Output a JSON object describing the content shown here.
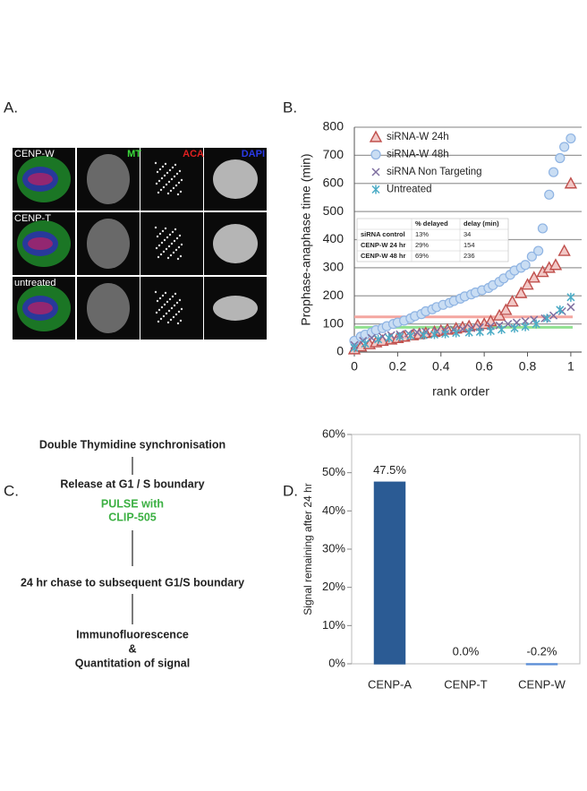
{
  "panel_labels": [
    "A.",
    "B.",
    "C.",
    "D."
  ],
  "microscopy": {
    "rows": [
      "CENP-W",
      "CENP-T",
      "untreated"
    ],
    "channels": [
      "MT",
      "ACA",
      "DAPI"
    ]
  },
  "workflow": {
    "steps": [
      "Double Thymidine synchronisation",
      "Release at G1 / S boundary",
      "24 hr chase to subsequent G1/S boundary",
      "Immunofluorescence",
      "&",
      "Quantitation of signal"
    ],
    "pulse": [
      "PULSE with",
      "CLIP-505"
    ]
  },
  "chart_data": [
    {
      "type": "scatter",
      "x_label": "rank order",
      "y_label": "Prophase-anaphase time (min)",
      "xlim": [
        0,
        1.05
      ],
      "xticks": [
        0,
        0.2,
        0.4,
        0.6,
        0.8,
        1
      ],
      "ylim": [
        0,
        800
      ],
      "yticks": [
        0,
        100,
        200,
        300,
        400,
        500,
        600,
        700,
        800
      ],
      "grid": true,
      "legend": "top-left",
      "series": [
        {
          "name": "siRNA-W 24h",
          "marker": "triangle",
          "color": "#c0504d",
          "x": [
            0,
            0.03,
            0.07,
            0.1,
            0.13,
            0.17,
            0.2,
            0.23,
            0.27,
            0.3,
            0.33,
            0.37,
            0.4,
            0.43,
            0.47,
            0.5,
            0.53,
            0.57,
            0.6,
            0.63,
            0.67,
            0.7,
            0.73,
            0.77,
            0.8,
            0.83,
            0.87,
            0.9,
            0.93,
            0.97,
            1
          ],
          "values": [
            10,
            20,
            28,
            35,
            40,
            45,
            50,
            55,
            60,
            64,
            68,
            72,
            76,
            80,
            84,
            88,
            92,
            96,
            100,
            110,
            130,
            150,
            180,
            210,
            240,
            265,
            285,
            300,
            310,
            360,
            600
          ]
        },
        {
          "name": "siRNA-W 48h",
          "marker": "circle",
          "color": "#8fb4e3",
          "x": [
            0,
            0.03,
            0.05,
            0.08,
            0.1,
            0.13,
            0.15,
            0.18,
            0.2,
            0.23,
            0.26,
            0.28,
            0.31,
            0.33,
            0.36,
            0.38,
            0.41,
            0.44,
            0.46,
            0.49,
            0.51,
            0.54,
            0.56,
            0.59,
            0.62,
            0.64,
            0.67,
            0.69,
            0.72,
            0.74,
            0.77,
            0.79,
            0.82,
            0.85,
            0.87,
            0.9,
            0.92,
            0.95,
            0.97,
            1
          ],
          "values": [
            40,
            55,
            62,
            70,
            78,
            85,
            92,
            100,
            105,
            112,
            120,
            128,
            135,
            145,
            152,
            160,
            168,
            175,
            182,
            190,
            198,
            205,
            212,
            220,
            228,
            238,
            250,
            262,
            275,
            290,
            300,
            310,
            340,
            360,
            440,
            560,
            640,
            690,
            730,
            760
          ]
        },
        {
          "name": "siRNA Non Targeting",
          "marker": "x",
          "color": "#7f6fa0",
          "x": [
            0,
            0.04,
            0.08,
            0.13,
            0.17,
            0.21,
            0.25,
            0.29,
            0.33,
            0.38,
            0.42,
            0.46,
            0.5,
            0.54,
            0.58,
            0.63,
            0.67,
            0.71,
            0.75,
            0.79,
            0.83,
            0.88,
            0.92,
            0.96,
            1
          ],
          "values": [
            25,
            40,
            50,
            55,
            60,
            63,
            66,
            70,
            72,
            75,
            78,
            80,
            82,
            85,
            88,
            92,
            95,
            100,
            105,
            110,
            115,
            120,
            130,
            145,
            160
          ]
        },
        {
          "name": "Untreated",
          "marker": "asterisk",
          "color": "#4bacc6",
          "x": [
            0,
            0.05,
            0.11,
            0.16,
            0.21,
            0.26,
            0.32,
            0.37,
            0.42,
            0.47,
            0.53,
            0.58,
            0.63,
            0.68,
            0.74,
            0.79,
            0.84,
            0.89,
            0.95,
            1
          ],
          "values": [
            15,
            30,
            45,
            50,
            55,
            58,
            60,
            62,
            65,
            68,
            70,
            72,
            75,
            80,
            85,
            90,
            100,
            120,
            150,
            195
          ]
        }
      ],
      "reference_lines": [
        {
          "value": 125,
          "color": "#f4a6a0"
        },
        {
          "value": 88,
          "color": "#90e090"
        }
      ],
      "inset_table": {
        "columns": [
          "% delayed",
          "delay (min)"
        ],
        "rows": [
          [
            "siRNA control",
            "13%",
            "34"
          ],
          [
            "CENP-W 24 hr",
            "29%",
            "154"
          ],
          [
            "CENP-W 48 hr",
            "69%",
            "236"
          ]
        ]
      }
    },
    {
      "type": "bar",
      "y_label": "Signal remaining after 24 hr",
      "color": "#2b5b94",
      "categories": [
        "CENP-A",
        "CENP-T",
        "CENP-W"
      ],
      "values": [
        47.5,
        0.0,
        -0.2
      ],
      "value_labels": [
        "47.5%",
        "0.0%",
        "-0.2%"
      ],
      "ylim": [
        0,
        60
      ],
      "yticks": [
        {
          "value": 0,
          "label": "0%"
        },
        {
          "value": 10,
          "label": "10%"
        },
        {
          "value": 20,
          "label": "20%"
        },
        {
          "value": 30,
          "label": "30%"
        },
        {
          "value": 40,
          "label": "40%"
        },
        {
          "value": 50,
          "label": "50%"
        },
        {
          "value": 60,
          "label": "60%"
        }
      ]
    }
  ]
}
